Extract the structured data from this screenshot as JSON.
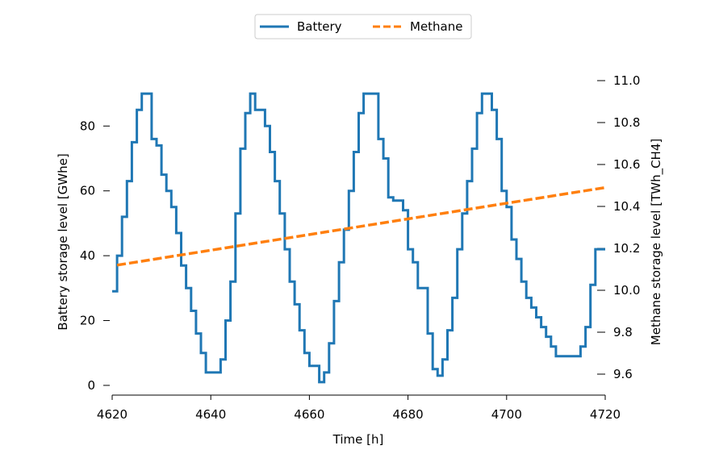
{
  "chart_data": {
    "type": "line",
    "title": "",
    "xlabel": "Time [h]",
    "ylabel_left": "Battery storage level [GWhe]",
    "ylabel_right": "Methane storage level [TWh_CH4]",
    "xlim": [
      4620,
      4720
    ],
    "ylim_left": [
      -3,
      94
    ],
    "ylim_right": [
      9.5,
      11.0
    ],
    "x_ticks": [
      4620,
      4640,
      4660,
      4680,
      4700,
      4720
    ],
    "x_tick_labels": [
      "4620",
      "4640",
      "4660",
      "4680",
      "4700",
      "4720"
    ],
    "y_left_ticks": [
      0,
      20,
      40,
      60,
      80
    ],
    "y_left_tick_labels": [
      "0",
      "20",
      "40",
      "60",
      "80"
    ],
    "y_right_ticks": [
      9.6,
      9.8,
      10.0,
      10.2,
      10.4,
      10.6,
      10.8,
      11.0
    ],
    "y_right_tick_labels": [
      "9.6",
      "9.8",
      "10.0",
      "10.2",
      "10.4",
      "10.6",
      "10.8",
      "11.0"
    ],
    "grid": false,
    "legend_position": "top-center",
    "series": [
      {
        "name": "Battery",
        "axis": "left",
        "style": "solid",
        "color": "#1f77b4",
        "step": true,
        "x": [
          4620,
          4621,
          4622,
          4623,
          4624,
          4625,
          4626,
          4627,
          4628,
          4629,
          4630,
          4631,
          4632,
          4633,
          4634,
          4635,
          4636,
          4637,
          4638,
          4639,
          4640,
          4641,
          4642,
          4643,
          4644,
          4645,
          4646,
          4647,
          4648,
          4649,
          4650,
          4651,
          4652,
          4653,
          4654,
          4655,
          4656,
          4657,
          4658,
          4659,
          4660,
          4661,
          4662,
          4663,
          4664,
          4665,
          4666,
          4667,
          4668,
          4669,
          4670,
          4671,
          4672,
          4673,
          4674,
          4675,
          4676,
          4677,
          4678,
          4679,
          4680,
          4681,
          4682,
          4683,
          4684,
          4685,
          4686,
          4687,
          4688,
          4689,
          4690,
          4691,
          4692,
          4693,
          4694,
          4695,
          4696,
          4697,
          4698,
          4699,
          4700,
          4701,
          4702,
          4703,
          4704,
          4705,
          4706,
          4707,
          4708,
          4709,
          4710,
          4711,
          4712,
          4713,
          4714,
          4715,
          4716,
          4717,
          4718,
          4719
        ],
        "values": [
          29,
          40,
          52,
          63,
          75,
          85,
          90,
          90,
          76,
          74,
          65,
          60,
          55,
          47,
          37,
          30,
          23,
          16,
          10,
          4,
          4,
          4,
          8,
          20,
          32,
          53,
          73,
          84,
          90,
          85,
          85,
          80,
          72,
          63,
          53,
          42,
          32,
          25,
          17,
          10,
          6,
          6,
          1,
          4,
          13,
          26,
          38,
          48,
          60,
          72,
          84,
          90,
          90,
          90,
          76,
          70,
          58,
          57,
          57,
          54,
          42,
          38,
          30,
          30,
          16,
          5,
          3,
          8,
          17,
          27,
          42,
          53,
          63,
          73,
          84,
          90,
          90,
          85,
          76,
          60,
          55,
          45,
          39,
          32,
          27,
          24,
          21,
          18,
          15,
          12,
          9,
          9,
          9,
          9,
          9,
          12,
          18,
          31,
          42,
          42
        ]
      },
      {
        "name": "Methane",
        "axis": "right",
        "style": "dashed",
        "color": "#ff7f0e",
        "x": [
          4621,
          4720
        ],
        "values": [
          10.12,
          10.49
        ]
      }
    ]
  },
  "colors": {
    "battery": "#1f77b4",
    "methane": "#ff7f0e",
    "axis": "#000000",
    "background": "#ffffff"
  }
}
